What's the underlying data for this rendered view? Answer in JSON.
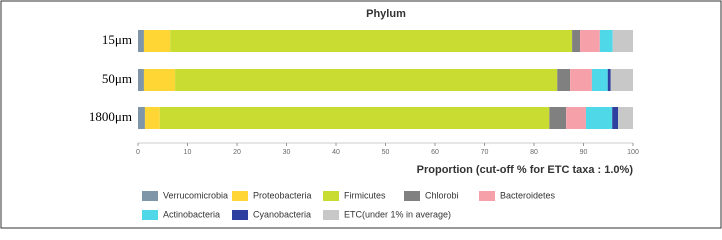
{
  "chart_data": {
    "type": "stacked-bar-horizontal",
    "title": "Phylum",
    "x_label": "Proportion (cut-off % for ETC taxa : 1.0%)",
    "categories": [
      "15μm",
      "50μm",
      "1800μm"
    ],
    "series": [
      {
        "name": "Verrucomicrobia",
        "color": "#7f96a8",
        "values": [
          1.2,
          1.2,
          1.4
        ]
      },
      {
        "name": "Proteobacteria",
        "color": "#ffd633",
        "values": [
          5.3,
          6.3,
          3.0
        ]
      },
      {
        "name": "Firmicutes",
        "color": "#c8dc32",
        "values": [
          81.2,
          77.2,
          78.7
        ]
      },
      {
        "name": "Chlorobi",
        "color": "#808080",
        "values": [
          1.6,
          2.6,
          3.4
        ]
      },
      {
        "name": "Bacteroidetes",
        "color": "#f6a1a9",
        "values": [
          4.0,
          4.4,
          4.0
        ]
      },
      {
        "name": "Actinobacteria",
        "color": "#4fd8e8",
        "values": [
          2.6,
          3.2,
          5.3
        ]
      },
      {
        "name": "Cyanobacteria",
        "color": "#2f3fa0",
        "values": [
          0,
          0.6,
          1.2
        ]
      },
      {
        "name": "ETC(under 1% in average)",
        "color": "#c8c8c8",
        "values": [
          4.1,
          4.5,
          3.0
        ]
      }
    ],
    "xlim": [
      0,
      100
    ],
    "xticks": [
      0,
      10,
      20,
      30,
      40,
      50,
      60,
      70,
      80,
      90,
      100
    ],
    "grid": false
  }
}
